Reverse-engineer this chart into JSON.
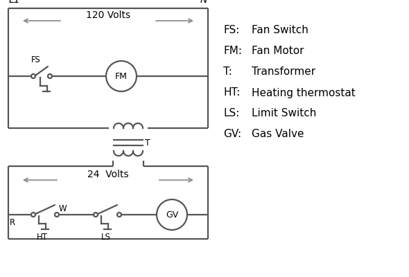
{
  "bg_color": "#ffffff",
  "line_color": "#555555",
  "text_color": "#000000",
  "legend_items": [
    [
      "FS:",
      "Fan Switch"
    ],
    [
      "FM:",
      "Fan Motor"
    ],
    [
      "T:",
      "Transformer"
    ],
    [
      "HT:",
      "Heating thermostat"
    ],
    [
      "LS:",
      "Limit Switch"
    ],
    [
      "GV:",
      "Gas Valve"
    ]
  ]
}
